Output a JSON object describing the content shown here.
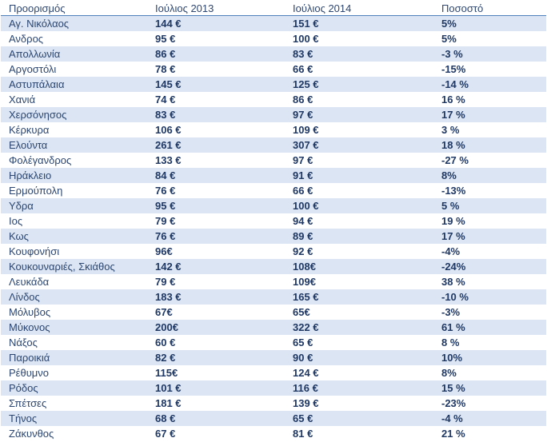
{
  "table": {
    "headers": [
      "Προορισμός",
      "Ιούλιος 2013",
      "Ιούλιος 2014",
      "Ποσοστό"
    ],
    "rows": [
      [
        "Αγ. Νικόλαος",
        "144 €",
        "151 €",
        "5%"
      ],
      [
        "Ανδρος",
        "95 €",
        "100 €",
        "5%"
      ],
      [
        "Απολλωνία",
        "86 €",
        "83 €",
        "-3 %"
      ],
      [
        "Αργοστόλι",
        "78 €",
        "66 €",
        "-15%"
      ],
      [
        "Αστυπάλαια",
        "145 €",
        "125 €",
        "-14 %"
      ],
      [
        "Χανιά",
        "74 €",
        "86 €",
        "16 %"
      ],
      [
        "Χερσόνησος",
        "83 €",
        "97 €",
        "17 %"
      ],
      [
        "Κέρκυρα",
        "106 €",
        "109 €",
        "3 %"
      ],
      [
        "Ελούντα",
        "261 €",
        "307 €",
        "18 %"
      ],
      [
        "Φολέγανδρος",
        "133 €",
        "97 €",
        "-27 %"
      ],
      [
        "Ηράκλειο",
        "84 €",
        "91 €",
        "8%"
      ],
      [
        "Ερμούπολη",
        "76 €",
        "66 €",
        "-13%"
      ],
      [
        "Υδρα",
        "95 €",
        "100 €",
        "5 %"
      ],
      [
        "Ιος",
        "79 €",
        "94 €",
        "19 %"
      ],
      [
        "Κως",
        "76 €",
        "89 €",
        "17 %"
      ],
      [
        "Κουφονήσι",
        "96€",
        "92 €",
        "-4%"
      ],
      [
        "Κουκουναριές, Σκιάθος",
        "142 €",
        "108€",
        "-24%"
      ],
      [
        "Λευκάδα",
        "79 €",
        "109€",
        "38 %"
      ],
      [
        "Λίνδος",
        "183 €",
        "165 €",
        "-10 %"
      ],
      [
        "Μόλυβος",
        "67€",
        "65€",
        "-3%"
      ],
      [
        "Μύκονος",
        "200€",
        "322 €",
        "61 %"
      ],
      [
        "Νάξος",
        "60 €",
        "65 €",
        "8 %"
      ],
      [
        "Παροικιά",
        "82 €",
        "90 €",
        "10%"
      ],
      [
        "Ρέθυμνο",
        "115€",
        "124 €",
        "8%"
      ],
      [
        "Ρόδος",
        "101 €",
        "116 €",
        "15 %"
      ],
      [
        "Σπέτσες",
        "181 €",
        "139 €",
        "-23%"
      ],
      [
        "Τήνος",
        "68 €",
        "65 €",
        "-4 %"
      ],
      [
        "Ζάκυνθος",
        "67 €",
        "81 €",
        "21 %"
      ]
    ]
  },
  "colors": {
    "band": "#dbe5f3",
    "header_rule": "#4f81bd",
    "text": "#1f3864"
  }
}
